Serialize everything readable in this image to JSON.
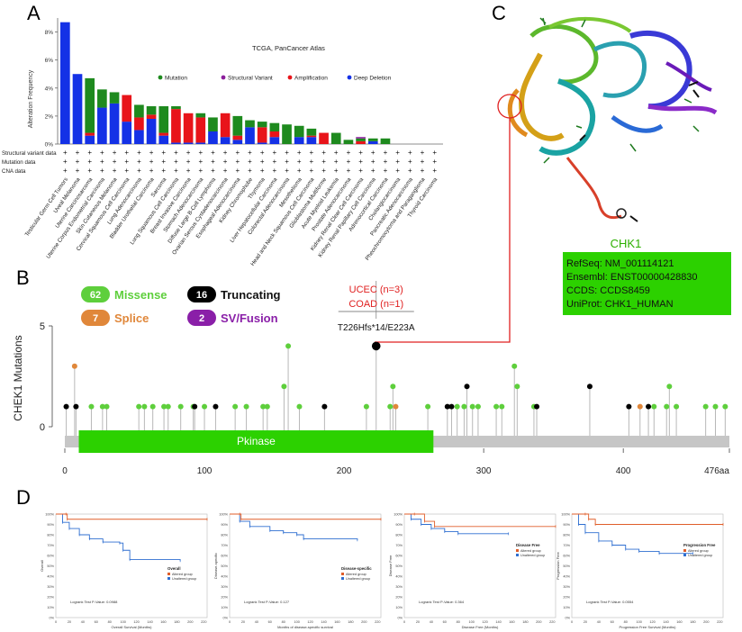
{
  "panels": {
    "A": "A",
    "B": "B",
    "C": "C",
    "D": "D"
  },
  "colors": {
    "mutation": "#1e8a1e",
    "amplification": "#e8141a",
    "deep_deletion": "#1431e6",
    "structural": "#8b1e9c",
    "missense": "#5ecf3c",
    "truncating": "#000000",
    "splice": "#e0873a",
    "sv_fusion": "#8a1fa8",
    "pkinase": "#2cd100",
    "altered": "#e05e2a",
    "unaltered": "#2f6fd1"
  },
  "chart_data": [
    {
      "panel": "A",
      "type": "bar",
      "title": "TCGA, PanCancer Atlas",
      "ylabel": "Alteration Frequency",
      "yticks": [
        "8%",
        "6%",
        "4%",
        "2%",
        "0%"
      ],
      "ylim": [
        0,
        9
      ],
      "legend": [
        {
          "key": "mutation",
          "label": "Mutation"
        },
        {
          "key": "structural",
          "label": "Structural Variant"
        },
        {
          "key": "amplification",
          "label": "Amplification"
        },
        {
          "key": "deep_deletion",
          "label": "Deep Deletion"
        }
      ],
      "row_labels": [
        "Structural variant data",
        "Mutation data",
        "CNA data"
      ],
      "row_mark": "+",
      "categories": [
        "Testicular Germ Cell Tumors",
        "Uveal Melanoma",
        "Uterine Carcinosarcoma",
        "Uterine Corpus Endometrial Carcinoma",
        "Skin Cutaneous Melanoma",
        "Cervical Squamous Cell Carcinoma",
        "Lung Adenocarcinoma",
        "Bladder Urothelial Carcinoma",
        "Sarcoma",
        "Lung Squamous Cell Carcinoma",
        "Breast Invasive Carcinoma",
        "Stomach Adenocarcinoma",
        "Diffuse Large B-Cell Lymphoma",
        "Ovarian Serous Cystadenocarcinoma",
        "Esophageal Adenocarcinoma",
        "Kidney Chromophobe",
        "Thymoma",
        "Liver Hepatocellular Carcinoma",
        "Colorectal Adenocarcinoma",
        "Mesothelioma",
        "Head and Neck Squamous Cell Carcinoma",
        "Glioblastoma Multiforme",
        "Acute Myeloid Leukemia",
        "Prostate Adenocarcinoma",
        "Kidney Renal Clear Cell Carcinoma",
        "Kidney Renal Papillary Cell Carcinoma",
        "Adrenocortical Carcinoma",
        "Cholangiocarcinoma",
        "Pancreatic Adenocarcinoma",
        "Pheochromocytoma and Paraganglioma",
        "Thyroid Carcinoma"
      ],
      "series": [
        {
          "key": "deep_deletion",
          "values": [
            8.7,
            5.0,
            0.6,
            2.6,
            2.9,
            1.6,
            1.0,
            1.8,
            0.6,
            0.1,
            0.1,
            0.1,
            0.9,
            0.5,
            0.3,
            1.2,
            0.1,
            0.5,
            0.0,
            0.5,
            0.5,
            0.0,
            0.0,
            0.0,
            0.0,
            0.2,
            0.0,
            0.0,
            0.0,
            0.0,
            0.0
          ]
        },
        {
          "key": "amplification",
          "values": [
            0.0,
            0.0,
            0.2,
            0.0,
            0.0,
            1.9,
            0.9,
            0.3,
            0.2,
            2.4,
            2.1,
            1.8,
            0.0,
            1.7,
            0.3,
            0.0,
            1.1,
            0.4,
            0.0,
            0.0,
            0.1,
            0.8,
            0.0,
            0.0,
            0.2,
            0.0,
            0.0,
            0.0,
            0.0,
            0.0,
            0.0
          ]
        },
        {
          "key": "mutation",
          "values": [
            0.0,
            0.0,
            3.9,
            1.3,
            0.8,
            0.0,
            0.9,
            0.6,
            1.9,
            0.2,
            0.0,
            0.3,
            1.0,
            0.0,
            1.4,
            0.5,
            0.4,
            0.6,
            1.4,
            0.8,
            0.5,
            0.0,
            0.8,
            0.3,
            0.2,
            0.2,
            0.4,
            0.0,
            0.0,
            0.0,
            0.0
          ]
        },
        {
          "key": "structural",
          "values": [
            0.0,
            0.0,
            0.0,
            0.0,
            0.0,
            0.0,
            0.0,
            0.0,
            0.0,
            0.0,
            0.0,
            0.0,
            0.0,
            0.0,
            0.0,
            0.0,
            0.0,
            0.0,
            0.0,
            0.0,
            0.0,
            0.0,
            0.0,
            0.0,
            0.1,
            0.0,
            0.0,
            0.0,
            0.0,
            0.0,
            0.0
          ]
        }
      ]
    },
    {
      "panel": "B",
      "type": "scatter",
      "subtype": "lollipop",
      "ylabel": "CHEK1 Mutations",
      "yticks": [
        0,
        5
      ],
      "ylim": [
        0,
        5
      ],
      "xlim": [
        0,
        476
      ],
      "xticks": [
        "0",
        "100",
        "200",
        "300",
        "400",
        "476aa"
      ],
      "domain": {
        "label": "Pkinase",
        "start": 10,
        "end": 264
      },
      "legend": [
        {
          "key": "missense",
          "count": "62",
          "label": "Missense"
        },
        {
          "key": "truncating",
          "count": "16",
          "label": "Truncating"
        },
        {
          "key": "splice",
          "count": "7",
          "label": "Splice"
        },
        {
          "key": "sv_fusion",
          "count": "2",
          "label": "SV/Fusion"
        }
      ],
      "hotspot": {
        "position": 223,
        "count": 4,
        "label": "T226Hfs*14/E223A",
        "cancers": [
          "UCEC (n=3)",
          "COAD (n=1)"
        ]
      },
      "points": [
        {
          "x": 1,
          "y": 1,
          "type": "truncating"
        },
        {
          "x": 7,
          "y": 3,
          "type": "splice"
        },
        {
          "x": 8,
          "y": 1,
          "type": "truncating"
        },
        {
          "x": 19,
          "y": 1,
          "type": "missense"
        },
        {
          "x": 27,
          "y": 1,
          "type": "missense"
        },
        {
          "x": 30,
          "y": 1,
          "type": "missense"
        },
        {
          "x": 53,
          "y": 1,
          "type": "missense"
        },
        {
          "x": 57,
          "y": 1,
          "type": "missense"
        },
        {
          "x": 63,
          "y": 1,
          "type": "missense"
        },
        {
          "x": 71,
          "y": 1,
          "type": "missense"
        },
        {
          "x": 74,
          "y": 1,
          "type": "missense"
        },
        {
          "x": 83,
          "y": 1,
          "type": "missense"
        },
        {
          "x": 92,
          "y": 1,
          "type": "missense"
        },
        {
          "x": 93,
          "y": 1,
          "type": "truncating"
        },
        {
          "x": 100,
          "y": 1,
          "type": "missense"
        },
        {
          "x": 108,
          "y": 1,
          "type": "truncating"
        },
        {
          "x": 122,
          "y": 1,
          "type": "missense"
        },
        {
          "x": 130,
          "y": 1,
          "type": "missense"
        },
        {
          "x": 142,
          "y": 1,
          "type": "missense"
        },
        {
          "x": 145,
          "y": 1,
          "type": "missense"
        },
        {
          "x": 157,
          "y": 2,
          "type": "missense"
        },
        {
          "x": 160,
          "y": 4,
          "type": "missense"
        },
        {
          "x": 168,
          "y": 1,
          "type": "missense"
        },
        {
          "x": 186,
          "y": 1,
          "type": "truncating"
        },
        {
          "x": 216,
          "y": 1,
          "type": "missense"
        },
        {
          "x": 223,
          "y": 4,
          "type": "truncating"
        },
        {
          "x": 233,
          "y": 1,
          "type": "missense"
        },
        {
          "x": 235,
          "y": 2,
          "type": "missense"
        },
        {
          "x": 237,
          "y": 1,
          "type": "splice"
        },
        {
          "x": 260,
          "y": 1,
          "type": "missense"
        },
        {
          "x": 274,
          "y": 1,
          "type": "truncating"
        },
        {
          "x": 277,
          "y": 1,
          "type": "truncating"
        },
        {
          "x": 281,
          "y": 1,
          "type": "missense"
        },
        {
          "x": 286,
          "y": 1,
          "type": "missense"
        },
        {
          "x": 288,
          "y": 2,
          "type": "truncating"
        },
        {
          "x": 292,
          "y": 1,
          "type": "missense"
        },
        {
          "x": 296,
          "y": 1,
          "type": "missense"
        },
        {
          "x": 309,
          "y": 1,
          "type": "missense"
        },
        {
          "x": 313,
          "y": 1,
          "type": "missense"
        },
        {
          "x": 322,
          "y": 3,
          "type": "missense"
        },
        {
          "x": 324,
          "y": 2,
          "type": "missense"
        },
        {
          "x": 336,
          "y": 1,
          "type": "missense"
        },
        {
          "x": 338,
          "y": 1,
          "type": "truncating"
        },
        {
          "x": 376,
          "y": 2,
          "type": "truncating"
        },
        {
          "x": 404,
          "y": 1,
          "type": "truncating"
        },
        {
          "x": 412,
          "y": 1,
          "type": "splice"
        },
        {
          "x": 418,
          "y": 1,
          "type": "truncating"
        },
        {
          "x": 422,
          "y": 1,
          "type": "missense"
        },
        {
          "x": 431,
          "y": 1,
          "type": "missense"
        },
        {
          "x": 433,
          "y": 2,
          "type": "missense"
        },
        {
          "x": 438,
          "y": 1,
          "type": "missense"
        },
        {
          "x": 459,
          "y": 1,
          "type": "missense"
        },
        {
          "x": 466,
          "y": 1,
          "type": "missense"
        },
        {
          "x": 473,
          "y": 1,
          "type": "missense"
        }
      ]
    },
    {
      "panel": "D",
      "type": "line",
      "subtype": "kaplan-meier",
      "plots": [
        {
          "ylabel": "Overall",
          "xlabel": "Overall Survival (Months)",
          "legend_title": "Overall",
          "pvalue": "Logrank Test P-Value: 0.0988",
          "xmax": 225,
          "altered": [
            [
              0,
              100
            ],
            [
              15,
              100
            ],
            [
              17,
              95
            ],
            [
              225,
              95
            ]
          ],
          "unaltered": [
            [
              0,
              100
            ],
            [
              10,
              92
            ],
            [
              20,
              86
            ],
            [
              35,
              80
            ],
            [
              50,
              76
            ],
            [
              70,
              73
            ],
            [
              95,
              72
            ],
            [
              100,
              65
            ],
            [
              110,
              56
            ],
            [
              185,
              55
            ]
          ]
        },
        {
          "ylabel": "Disease-specific",
          "xlabel": "Months of disease-specific survival",
          "legend_title": "Disease-specific",
          "pvalue": "Logrank Test P-Value: 0.127",
          "xmax": 225,
          "altered": [
            [
              0,
              100
            ],
            [
              15,
              100
            ],
            [
              17,
              95
            ],
            [
              225,
              95
            ]
          ],
          "unaltered": [
            [
              0,
              100
            ],
            [
              15,
              93
            ],
            [
              30,
              88
            ],
            [
              60,
              84
            ],
            [
              80,
              82
            ],
            [
              100,
              80
            ],
            [
              110,
              76
            ],
            [
              190,
              75
            ]
          ]
        },
        {
          "ylabel": "Disease Free",
          "xlabel": "Disease Free (Months)",
          "legend_title": "Disease Free",
          "pvalue": "Logrank Test P-Value: 0.364",
          "xmax": 225,
          "altered": [
            [
              0,
              100
            ],
            [
              15,
              100
            ],
            [
              30,
              93
            ],
            [
              45,
              88
            ],
            [
              225,
              88
            ]
          ],
          "unaltered": [
            [
              0,
              100
            ],
            [
              10,
              95
            ],
            [
              25,
              90
            ],
            [
              40,
              86
            ],
            [
              60,
              83
            ],
            [
              80,
              81
            ],
            [
              155,
              81
            ]
          ]
        },
        {
          "ylabel": "Progression Free",
          "xlabel": "Progression Free Survival (Months)",
          "legend_title": "Progression Free",
          "pvalue": "Logrank Test P-Value: 0.0554",
          "xmax": 225,
          "altered": [
            [
              0,
              100
            ],
            [
              20,
              100
            ],
            [
              25,
              95
            ],
            [
              35,
              90
            ],
            [
              225,
              90
            ]
          ],
          "unaltered": [
            [
              0,
              100
            ],
            [
              10,
              90
            ],
            [
              20,
              82
            ],
            [
              40,
              74
            ],
            [
              60,
              70
            ],
            [
              80,
              66
            ],
            [
              100,
              64
            ],
            [
              130,
              62
            ],
            [
              180,
              62
            ]
          ]
        }
      ],
      "legend": [
        "Altered group",
        "Unaltered group"
      ],
      "yticks": [
        "100%",
        "90%",
        "80%",
        "70%",
        "60%",
        "50%",
        "40%",
        "30%",
        "20%",
        "10%",
        "0%"
      ],
      "xticks": [
        "0",
        "20",
        "40",
        "60",
        "80",
        "100",
        "120",
        "140",
        "160",
        "180",
        "200",
        "220"
      ]
    }
  ],
  "protein": {
    "title": "CHK1",
    "lines": [
      "RefSeq: NM_001114121",
      "Ensembl: ENST00000428830",
      "CCDS: CCDS8459",
      "UniProt: CHK1_HUMAN"
    ]
  }
}
